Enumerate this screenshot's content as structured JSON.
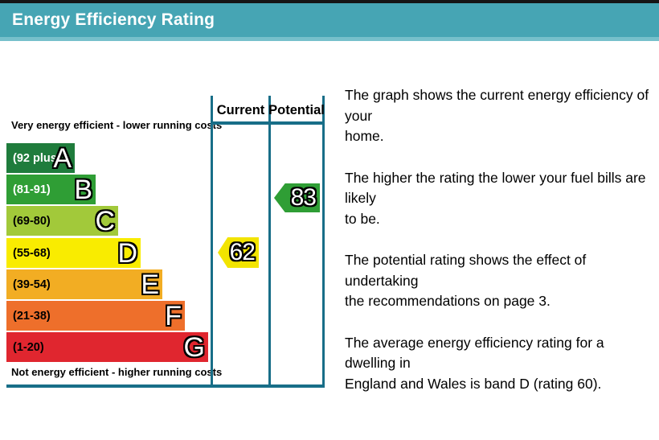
{
  "title_bar": {
    "title": "Energy Efficiency Rating"
  },
  "colors": {
    "top_strip": "#151515",
    "header_bg": "#46a5b4",
    "header_bg_highlight": "#76c0cb",
    "grid_line": "#186e88",
    "current_arrow": "#f2e400",
    "potential_arrow": "#2f9e35"
  },
  "chart": {
    "columns": {
      "current_label": "Current",
      "potential_label": "Potential"
    },
    "top_note": "Very energy efficient - lower running costs",
    "bottom_note": "Not energy efficient - higher running costs",
    "bands": [
      {
        "letter": "A",
        "range": "(92 plus)",
        "color": "#1f7c3c",
        "label_color": "#ffffff"
      },
      {
        "letter": "B",
        "range": "(81-91)",
        "color": "#2f9e35",
        "label_color": "#ffffff"
      },
      {
        "letter": "C",
        "range": "(69-80)",
        "color": "#a2c93a",
        "label_color": "#000000"
      },
      {
        "letter": "D",
        "range": "(55-68)",
        "color": "#f9ec00",
        "label_color": "#000000"
      },
      {
        "letter": "E",
        "range": "(39-54)",
        "color": "#f2ad23",
        "label_color": "#000000"
      },
      {
        "letter": "F",
        "range": "(21-38)",
        "color": "#ee6f2b",
        "label_color": "#000000"
      },
      {
        "letter": "G",
        "range": "(1-20)",
        "color": "#e0262f",
        "label_color": "#000000"
      }
    ],
    "current": {
      "value": "62",
      "color": "#f2e400",
      "band": "D"
    },
    "potential": {
      "value": "83",
      "color": "#2f9e35",
      "band": "B"
    }
  },
  "description": {
    "p1": "The graph shows the current energy efficiency of your\nhome.",
    "p2": "The higher the rating the lower your fuel bills are likely\nto be.",
    "p3": "The potential rating shows the effect of undertaking\nthe recommendations on page 3.",
    "p4": "The average energy efficiency rating for a dwelling in\nEngland and Wales is band D (rating 60)."
  },
  "chart_data": {
    "type": "bar",
    "title": "Energy Efficiency Rating",
    "categories": [
      "A",
      "B",
      "C",
      "D",
      "E",
      "F",
      "G"
    ],
    "band_ranges": [
      "(92 plus)",
      "(81-91)",
      "(69-80)",
      "(55-68)",
      "(39-54)",
      "(21-38)",
      "(1-20)"
    ],
    "band_colors": [
      "#1f7c3c",
      "#2f9e35",
      "#a2c93a",
      "#f9ec00",
      "#f2ad23",
      "#ee6f2b",
      "#e0262f"
    ],
    "series": [
      {
        "name": "Current",
        "value": 62,
        "band": "D",
        "color": "#f2e400"
      },
      {
        "name": "Potential",
        "value": 83,
        "band": "B",
        "color": "#2f9e35"
      }
    ],
    "scale": [
      1,
      100
    ],
    "annotations": [
      "Very energy efficient - lower running costs",
      "Not energy efficient - higher running costs"
    ]
  }
}
